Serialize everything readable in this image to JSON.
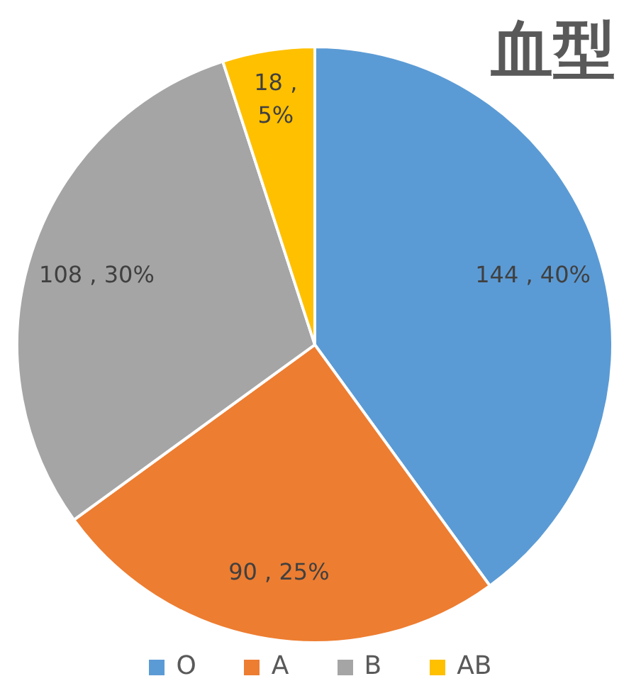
{
  "chart_data": {
    "type": "pie",
    "title": "血型",
    "categories": [
      "O",
      "A",
      "B",
      "AB"
    ],
    "values": [
      144,
      90,
      108,
      18
    ],
    "colors": [
      "#5b9bd5",
      "#ed7d31",
      "#a5a5a5",
      "#ffc000"
    ],
    "value_labels": [
      "144 , 40%",
      "90 , 25%",
      "108 , 30%",
      "18 , 5%"
    ],
    "legend": "bottom"
  }
}
